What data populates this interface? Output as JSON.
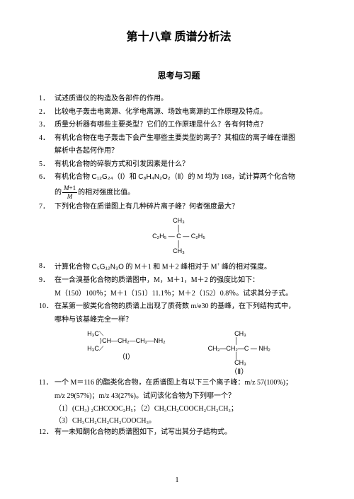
{
  "chapter_title": "第十八章 质谱分析法",
  "section_title": "思考与习题",
  "questions": [
    {
      "n": "1．",
      "t": "试述质谱仪的构造及各部件的作用。"
    },
    {
      "n": "2．",
      "t": "比较电子轰击电离源、化学电离源、场致电离源的工作原理及特点。"
    },
    {
      "n": "3．",
      "t": "质量分析器有哪些主要类型？它们的工作原理是什么？各有何特点？"
    },
    {
      "n": "4．",
      "t": "有机化合物在电子轰击下会产生哪些主要类型的离子？其相应的离子峰在谱图"
    },
    {
      "n": "",
      "t": "解析中各起何作用？",
      "indent": true
    },
    {
      "n": "5．",
      "t": "有机化合物的碎裂方式和引发因素是什么？"
    },
    {
      "n": "6．",
      "t": "",
      "html": true
    },
    {
      "n": "",
      "t": "",
      "html": true,
      "q6b": true,
      "indent": true
    },
    {
      "n": "7．",
      "t": "下列化合物在质谱图上有几种碎片离子峰？何者强度最大？"
    }
  ],
  "q6_main_parts": {
    "pre": "有机化合物 ",
    "f1": "C₁₂G₂₄",
    "roman1": "（Ⅰ）",
    "mid1": "和 ",
    "f2": "C₈H₄N₂O₂",
    "roman2": "（Ⅱ）",
    "mid2": "的 M 均为 ",
    "mval": "168",
    "post": "，试计算两个化合物"
  },
  "q6_b_parts": {
    "pre": "的",
    "frac_num": "M+1",
    "frac_den": "M",
    "post": "的相对强度比值。"
  },
  "struct7": {
    "l1": "CH₃",
    "l2": "│",
    "l3": "C₂H₅ — C — C₂H₅",
    "l4": "│",
    "l5": "CH₃"
  },
  "questions2": [
    {
      "n": "8．",
      "t": "",
      "q8": true
    },
    {
      "n": "9．",
      "t": "在一含溴基化合物的质谱图中，M，M＋1，M＋2 的强度比如下："
    },
    {
      "n": "",
      "t": "M（150）100％；M＋1（151）11.1％；M＋2（152）0.8％。试求其分子式。",
      "indent": true
    },
    {
      "n": "10．",
      "t": "在某第一胺类化合物的质谱上出现了质荷数 m/e30 的基峰，在下列结构式中，"
    },
    {
      "n": "",
      "t": "哪种与该基峰完全一样？",
      "indent": true
    }
  ],
  "q8_parts": {
    "pre": "计算化合物 ",
    "f": "C₅G₁₂N₃O",
    "mid": " 的 M＋1 和 M＋2 峰相对于 M",
    "sup": "+",
    "post": " 峰的相对强度。"
  },
  "struct10": {
    "left": {
      "l1": "H₃C⟍",
      "l2": "       ⟩CH—CH₂—CH₂—NH₂",
      "l3": "H₃C⟋",
      "label": "（Ⅰ）"
    },
    "right": {
      "l1": "               CH₃",
      "l2": "               │",
      "l3": "CH₃—CH₂—C — NH₂",
      "l4": "               │",
      "l5": "               CH₃",
      "label": "（Ⅱ）"
    }
  },
  "questions3": [
    {
      "n": "11．",
      "t": "一个 M＝116 的酯类化合物，在质谱图上有以下三个离子峰：m/z 57(100%)；"
    },
    {
      "n": "",
      "t": "m/z 29(57%)；m/z 43(27%)。试问该化合物为下列哪一个？",
      "indent": true
    }
  ],
  "opts11": {
    "l1": "（1）(CH₃) ₂CHCOOC₂H₅；（2）CH₃CH₂COOCH₂CH₂CH₃；",
    "l2": "（3）CH₃CH₂CH₂CH₂COOCH₃。"
  },
  "questions4": [
    {
      "n": "12．",
      "t": "有一未知酮化合物的质谱图如下，试写出其分子结构式。"
    }
  ],
  "page_number": "1"
}
